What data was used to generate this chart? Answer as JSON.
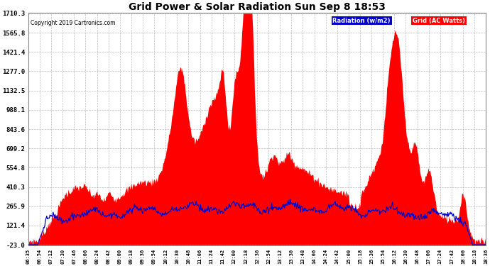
{
  "title": "Grid Power & Solar Radiation Sun Sep 8 18:53",
  "copyright": "Copyright 2019 Cartronics.com",
  "background_color": "#ffffff",
  "plot_bg_color": "#ffffff",
  "grid_color": "#aaaaaa",
  "yticks": [
    -23.0,
    121.4,
    265.9,
    410.3,
    554.8,
    699.2,
    843.6,
    988.1,
    1132.5,
    1277.0,
    1421.4,
    1565.8,
    1710.3
  ],
  "ymin": -23.0,
  "ymax": 1710.3,
  "legend_radiation_label": "Radiation (w/m2)",
  "legend_grid_label": "Grid (AC Watts)",
  "radiation_line_color": "#0000cd",
  "grid_fill_color": "#ff0000",
  "xtick_labels": [
    "06:35",
    "06:54",
    "07:12",
    "07:30",
    "07:46",
    "08:06",
    "08:24",
    "08:42",
    "09:00",
    "09:18",
    "09:36",
    "09:54",
    "10:12",
    "10:30",
    "10:48",
    "11:06",
    "11:24",
    "11:42",
    "12:00",
    "12:18",
    "12:36",
    "12:54",
    "13:12",
    "13:30",
    "13:48",
    "14:06",
    "14:24",
    "14:42",
    "15:00",
    "15:18",
    "15:36",
    "15:54",
    "16:12",
    "16:30",
    "16:48",
    "17:06",
    "17:24",
    "17:42",
    "18:00",
    "18:18",
    "18:36"
  ]
}
